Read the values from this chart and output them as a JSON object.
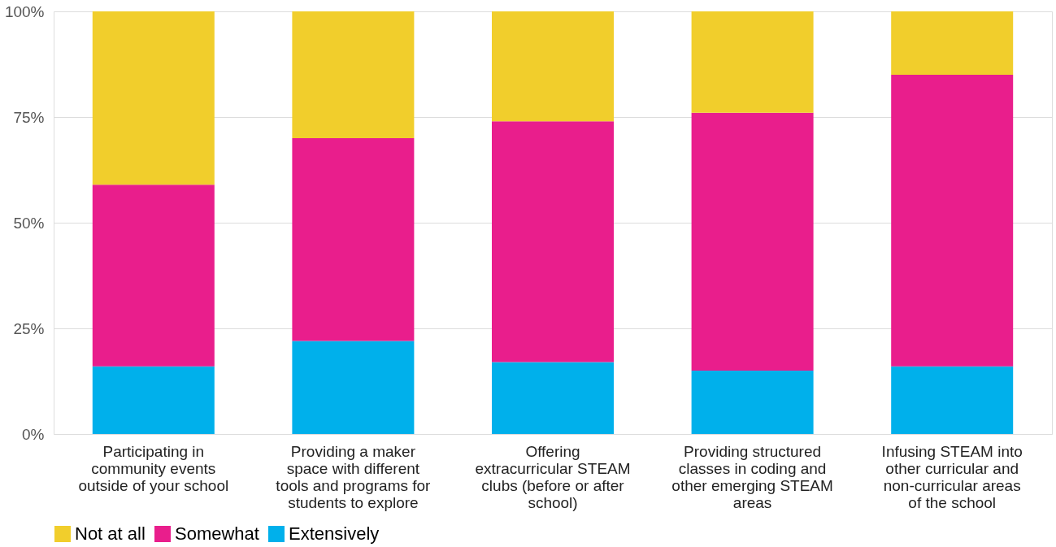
{
  "chart_data": {
    "type": "bar",
    "stacked": true,
    "categories": [
      "Participating in community events outside of your school",
      "Providing a maker space with different tools and programs for students to explore",
      "Offering extracurricular STEAM clubs (before or after school)",
      "Providing structured classes in coding and other emerging STEAM areas",
      "Infusing STEAM into other curricular and non-curricular areas of the school"
    ],
    "series": [
      {
        "name": "Extensively",
        "color": "#00b0eb",
        "values": [
          16,
          22,
          17,
          15,
          16
        ]
      },
      {
        "name": "Somewhat",
        "color": "#e91e8c",
        "values": [
          43,
          48,
          57,
          61,
          69
        ]
      },
      {
        "name": "Not at all",
        "color": "#f1ce2c",
        "values": [
          41,
          30,
          26,
          24,
          15
        ]
      }
    ],
    "ylim": [
      0,
      100
    ],
    "yticks": [
      {
        "value": 0,
        "label": "0%"
      },
      {
        "value": 25,
        "label": "25%"
      },
      {
        "value": 50,
        "label": "50%"
      },
      {
        "value": 75,
        "label": "75%"
      },
      {
        "value": 100,
        "label": "100%"
      }
    ],
    "grid": "y",
    "legend": "bottom"
  }
}
